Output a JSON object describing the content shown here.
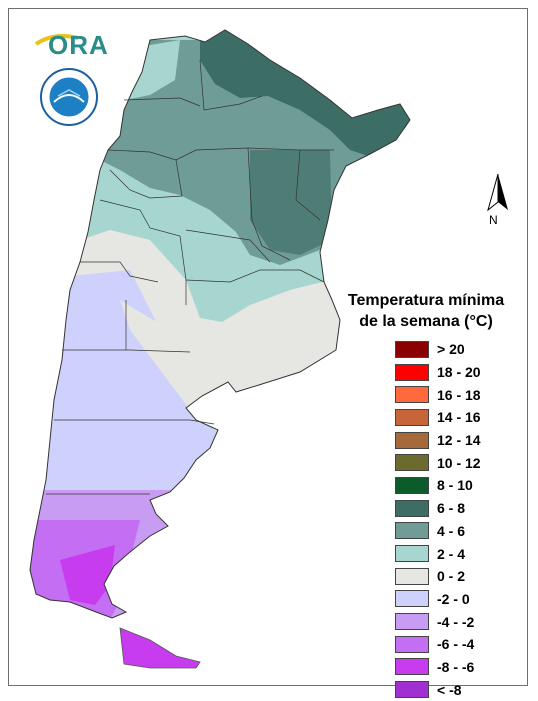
{
  "map": {
    "legend_title_line1": "Temperatura mínima",
    "legend_title_line2": "de la semana (°C)",
    "north_label": "N",
    "logo_text": "ORA",
    "legend": [
      {
        "label": "> 20",
        "color": "#8b0000"
      },
      {
        "label": "18 - 20",
        "color": "#ff0000"
      },
      {
        "label": "16 - 18",
        "color": "#ff6a3c"
      },
      {
        "label": "14 - 16",
        "color": "#c8643a"
      },
      {
        "label": "12 - 14",
        "color": "#a66a3a"
      },
      {
        "label": "10 - 12",
        "color": "#6b6b2e"
      },
      {
        "label": "8 - 10",
        "color": "#0b5c2a"
      },
      {
        "label": "6 - 8",
        "color": "#3d6e66"
      },
      {
        "label": "4 - 6",
        "color": "#6f9c96"
      },
      {
        "label": "2 - 4",
        "color": "#a6d6cf"
      },
      {
        "label": "0 - 2",
        "color": "#e6e6e2"
      },
      {
        "label": "-2 - 0",
        "color": "#cdd1fb"
      },
      {
        "label": "-4 - -2",
        "color": "#c89cf2"
      },
      {
        "label": "-6 - -4",
        "color": "#c46ef4"
      },
      {
        "label": "-8 - -6",
        "color": "#c83cf0"
      },
      {
        "label": "< -8",
        "color": "#a030d2"
      }
    ]
  }
}
